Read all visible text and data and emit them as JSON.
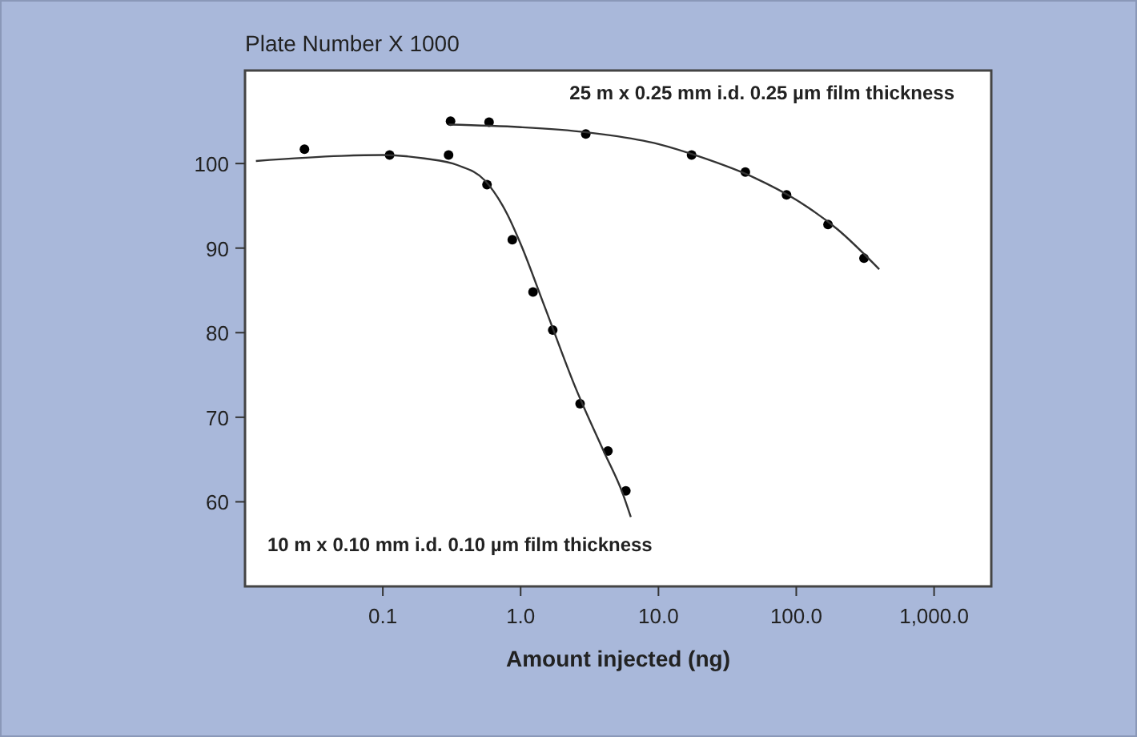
{
  "chart_data": {
    "type": "scatter",
    "title": "Plate Number X 1000",
    "xlabel": "Amount injected (ng)",
    "log": "x",
    "grid": false,
    "marker": "circle",
    "xlim": [
      0.01,
      2600
    ],
    "ylim": [
      50,
      111
    ],
    "xticks": [
      {
        "value": 0.1,
        "label": "0.1"
      },
      {
        "value": 1,
        "label": "1.0"
      },
      {
        "value": 10,
        "label": "10.0"
      },
      {
        "value": 100,
        "label": "100.0"
      },
      {
        "value": 1000,
        "label": "1,000.0"
      }
    ],
    "yticks": [
      60,
      70,
      80,
      90,
      100
    ],
    "series": [
      {
        "name": "10 m x 0.10 mm i.d. 0.10 µm film thickness",
        "color": "#000000",
        "x": [
          0.027,
          0.112,
          0.3,
          0.57,
          0.87,
          1.23,
          1.71,
          2.7,
          4.3,
          5.8
        ],
        "values": [
          101.7,
          101.0,
          101.0,
          97.5,
          91,
          84.8,
          80.3,
          71.6,
          66.0,
          61.3
        ]
      },
      {
        "name": "25 m x 0.25 mm i.d. 0.25 µm film thickness",
        "color": "#000000",
        "x": [
          0.31,
          0.59,
          2.97,
          17.4,
          42.7,
          85,
          170,
          310
        ],
        "values": [
          105.0,
          104.9,
          103.5,
          101.0,
          99.0,
          96.3,
          92.8,
          88.8
        ]
      },
      {
        "type": "line",
        "color": "#333333",
        "marker": "none",
        "x": [
          0.012,
          0.05,
          0.1,
          0.2,
          0.35,
          0.55,
          0.8,
          1.0,
          1.5,
          2.5,
          4,
          5.5,
          6.3
        ],
        "values": [
          100.3,
          100.9,
          101,
          100.6,
          99.8,
          98,
          94,
          90.5,
          83,
          73.5,
          66,
          61,
          58.2
        ]
      },
      {
        "type": "line",
        "color": "#333333",
        "marker": "none",
        "x": [
          0.3,
          1,
          3,
          10,
          20,
          50,
          100,
          200,
          400
        ],
        "values": [
          104.6,
          104.3,
          103.7,
          102.3,
          100.8,
          98.3,
          95.7,
          92.2,
          87.5
        ]
      }
    ]
  }
}
